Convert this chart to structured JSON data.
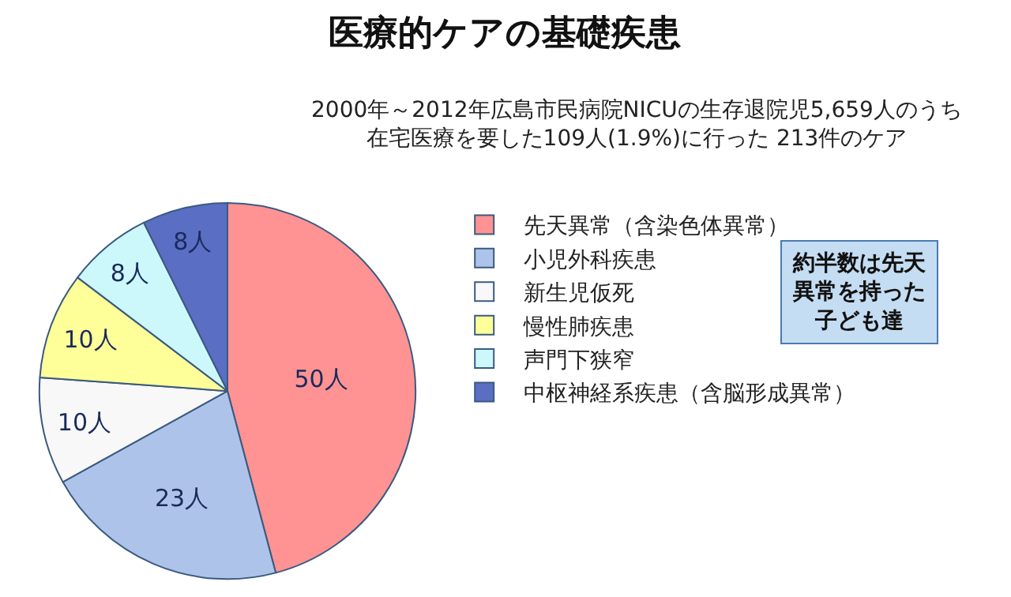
{
  "chart_data": {
    "type": "pie",
    "title": "医療的ケアの基礎疾患",
    "subtitle": "2000年～2012年広島市民病院NICUの生存退院児5,659人のうち在宅医療を要した109人(1.9%)に行った 213件のケア",
    "categories": [
      "先天異常（含染色体異常）",
      "小児外科疾患",
      "新生児仮死",
      "慢性肺疾患",
      "声門下狭窄",
      "中枢神経系疾患（含脳形成異常）"
    ],
    "values": [
      50,
      23,
      10,
      10,
      8,
      8
    ],
    "colors": [
      "#ff9393",
      "#aec3ea",
      "#f8f8f8",
      "#ffff99",
      "#ccf8fc",
      "#5a6ec4"
    ],
    "value_labels": [
      "50人",
      "23人",
      "10人",
      "10人",
      "8人",
      "8人"
    ],
    "legend": "right",
    "annotations": [
      "約半数は先天異常を持った子ども達"
    ]
  }
}
